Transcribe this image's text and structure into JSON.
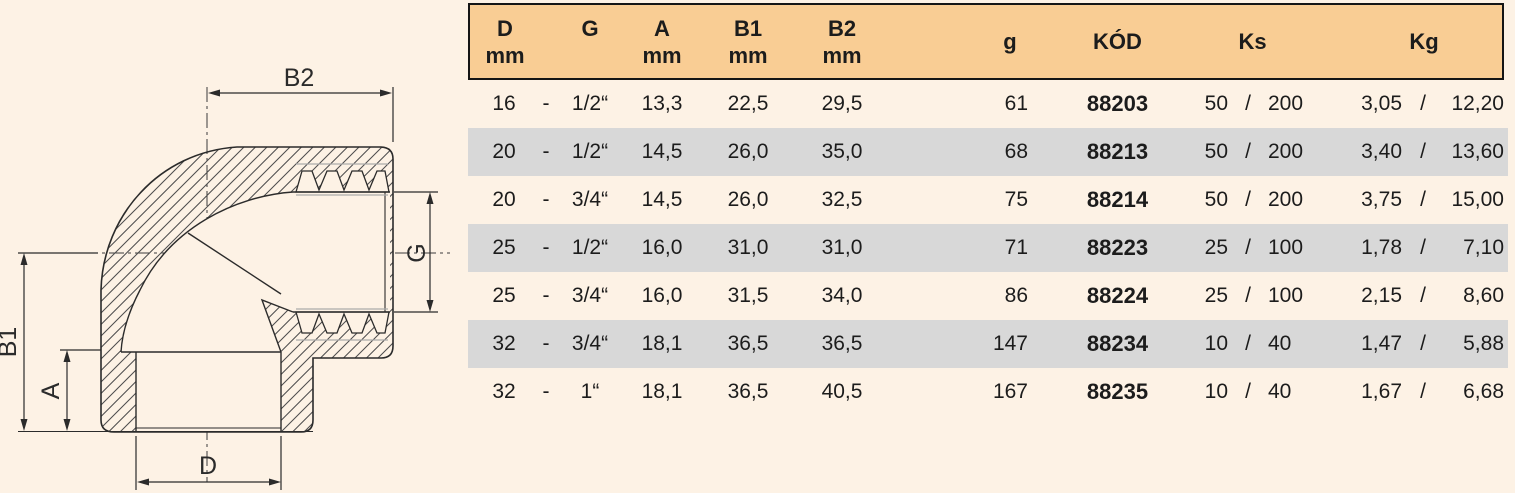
{
  "colors": {
    "background": "#FDF2E5",
    "header_bg": "#F9CD94",
    "stripe": "#D8D8D8",
    "text": "#1C1C1C",
    "line": "#2B2B2B"
  },
  "drawing": {
    "description": "cross-section of 90-degree elbow fitting with threaded female socket",
    "dim_labels": {
      "b2": "B2",
      "g": "G",
      "b1": "B1",
      "a": "A",
      "d": "D"
    }
  },
  "table": {
    "header": {
      "d1": "D",
      "d2": "mm",
      "g": "G",
      "a1": "A",
      "a2": "mm",
      "b1_1": "B1",
      "b1_2": "mm",
      "b2_1": "B2",
      "b2_2": "mm",
      "weight": "g",
      "code": "KÓD",
      "ks": "Ks",
      "kg": "Kg"
    },
    "rows": [
      {
        "d": "16",
        "dash": "-",
        "gi": "1/2“",
        "a": "13,3",
        "b1": "22,5",
        "b2": "29,5",
        "w": "61",
        "code": "88203",
        "ks1": "50",
        "kssep": "/",
        "ks2": "200",
        "kg1": "3,05",
        "kgsep": "/",
        "kg2": "12,20",
        "striped": false
      },
      {
        "d": "20",
        "dash": "-",
        "gi": "1/2“",
        "a": "14,5",
        "b1": "26,0",
        "b2": "35,0",
        "w": "68",
        "code": "88213",
        "ks1": "50",
        "kssep": "/",
        "ks2": "200",
        "kg1": "3,40",
        "kgsep": "/",
        "kg2": "13,60",
        "striped": true
      },
      {
        "d": "20",
        "dash": "-",
        "gi": "3/4“",
        "a": "14,5",
        "b1": "26,0",
        "b2": "32,5",
        "w": "75",
        "code": "88214",
        "ks1": "50",
        "kssep": "/",
        "ks2": "200",
        "kg1": "3,75",
        "kgsep": "/",
        "kg2": "15,00",
        "striped": false
      },
      {
        "d": "25",
        "dash": "-",
        "gi": "1/2“",
        "a": "16,0",
        "b1": "31,0",
        "b2": "31,0",
        "w": "71",
        "code": "88223",
        "ks1": "25",
        "kssep": "/",
        "ks2": "100",
        "kg1": "1,78",
        "kgsep": "/",
        "ks2_note": "",
        "kg2": "7,10",
        "striped": true
      },
      {
        "d": "25",
        "dash": "-",
        "gi": "3/4“",
        "a": "16,0",
        "b1": "31,5",
        "b2": "34,0",
        "w": "86",
        "code": "88224",
        "ks1": "25",
        "kssep": "/",
        "ks2": "100",
        "kg1": "2,15",
        "kgsep": "/",
        "kg2": "8,60",
        "striped": false
      },
      {
        "d": "32",
        "dash": "-",
        "gi": "3/4“",
        "a": "18,1",
        "b1": "36,5",
        "b2": "36,5",
        "w": "147",
        "code": "88234",
        "ks1": "10",
        "kssep": "/",
        "ks2": "40",
        "kg1": "1,47",
        "kgsep": "/",
        "kg2": "5,88",
        "striped": true
      },
      {
        "d": "32",
        "dash": "-",
        "gi": "1“",
        "a": "18,1",
        "b1": "36,5",
        "b2": "40,5",
        "w": "167",
        "code": "88235",
        "ks1": "10",
        "kssep": "/",
        "ks2": "40",
        "kg1": "1,67",
        "kgsep": "/",
        "kg2": "6,68",
        "striped": false
      }
    ]
  }
}
